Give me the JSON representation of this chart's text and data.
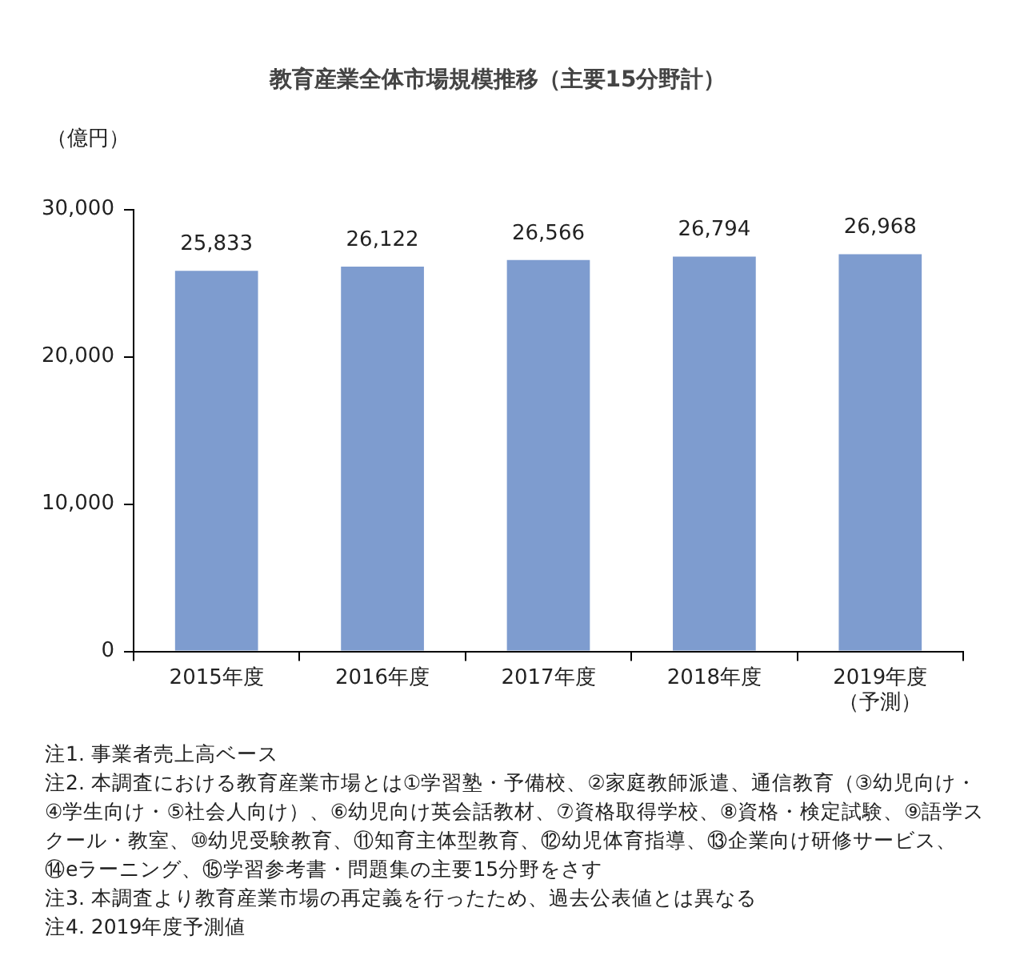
{
  "chart_data": {
    "type": "bar",
    "title": "教育産業全体市場規模推移（主要15分野計）",
    "ylabel": "（億円）",
    "categories": [
      "2015年度",
      "2016年度",
      "2017年度",
      "2018年度",
      "2019年度（予測）"
    ],
    "values": [
      25833,
      26122,
      26566,
      26794,
      26968
    ],
    "value_labels": [
      "25,833",
      "26,122",
      "26,566",
      "26,794",
      "26,968"
    ],
    "color": "#7e9ccf",
    "ylim": [
      0,
      30000
    ],
    "yticks": [
      {
        "value": 0,
        "label": "0"
      },
      {
        "value": 10000,
        "label": "10,000"
      },
      {
        "value": 20000,
        "label": "20,000"
      },
      {
        "value": 30000,
        "label": "30,000"
      }
    ],
    "grid": false,
    "legend": false,
    "annotations": [
      "注1. 事業者売上高ベース",
      "注2. 本調査における教育産業市場とは①学習塾・予備校、②家庭教師派遣、通信教育（③幼児向け・④学生向け・⑤社会人向け）、⑥幼児向け英会話教材、⑦資格取得学校、⑧資格・検定試験、⑨語学スクール・教室、⑩幼児受験教育、⑪知育主体型教育、⑫幼児体育指導、⑬企業向け研修サービス、⑭eラーニング、⑮学習参考書・問題集の主要15分野をさす",
      "注3. 本調査より教育産業市場の再定義を行ったため、過去公表値とは異なる",
      "注4. 2019年度予測値"
    ]
  }
}
